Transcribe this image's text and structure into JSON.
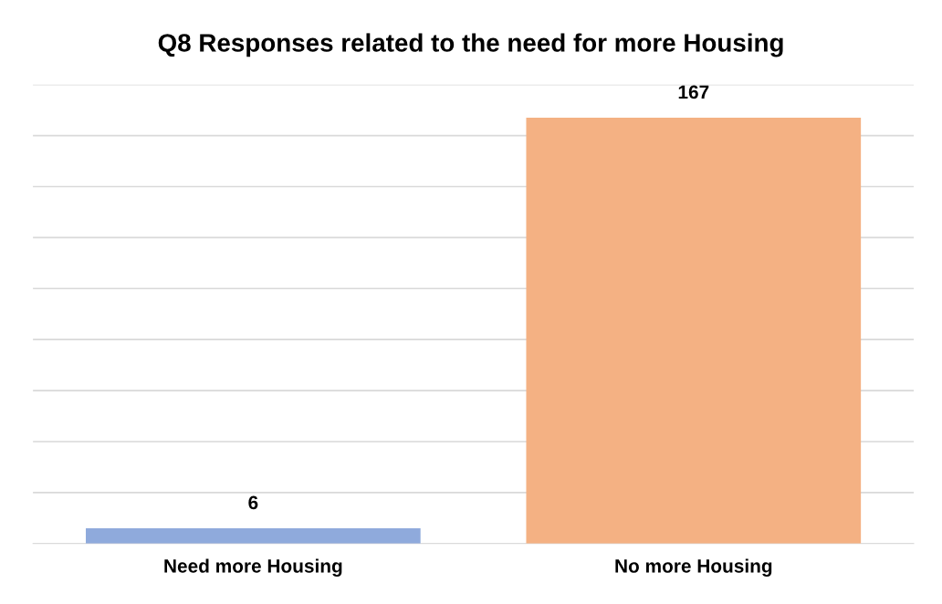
{
  "chart_data": {
    "type": "bar",
    "title": "Q8 Responses related to the need for more Housing",
    "categories": [
      "Need more Housing",
      "No more Housing"
    ],
    "values": [
      6,
      167
    ],
    "colors": [
      "#8faadc",
      "#f4b183"
    ],
    "ylim": [
      0,
      180
    ],
    "yticks": [
      0,
      20,
      40,
      60,
      80,
      100,
      120,
      140,
      160,
      180
    ],
    "tick_labels": "x",
    "grid": "y",
    "data_labels": true
  }
}
